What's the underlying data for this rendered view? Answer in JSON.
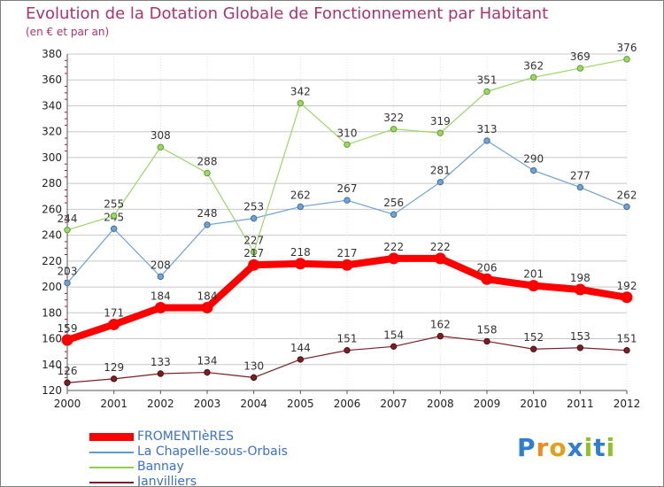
{
  "title": "Evolution de la Dotation Globale de Fonctionnement par Habitant",
  "subtitle": "(en € et par an)",
  "logo": {
    "text": "Proxiti",
    "letters": [
      "P",
      "r",
      "o",
      "x",
      "i",
      "t",
      "i"
    ],
    "colors": [
      "#2e7fd3",
      "#f08a1c",
      "#e2a11a",
      "#2e7fd3",
      "#8fc31f",
      "#2e7fd3",
      "#8fc31f"
    ]
  },
  "chart_data": {
    "type": "line",
    "title": "Evolution de la Dotation Globale de Fonctionnement par Habitant",
    "subtitle": "(en € et par an)",
    "xlabel": "",
    "ylabel": "",
    "ylim": [
      120,
      380
    ],
    "yticks": [
      120,
      140,
      160,
      180,
      200,
      220,
      240,
      260,
      280,
      300,
      320,
      340,
      360,
      380
    ],
    "grid": true,
    "legend_position": "bottom-left",
    "categories": [
      "2000",
      "2001",
      "2002",
      "2003",
      "2004",
      "2005",
      "2006",
      "2007",
      "2008",
      "2009",
      "2010",
      "2011",
      "2012"
    ],
    "series": [
      {
        "name": "FROMENTIèRES",
        "color": "#ff0000",
        "values": [
          159,
          171,
          184,
          184,
          217,
          218,
          217,
          222,
          222,
          206,
          201,
          198,
          192
        ]
      },
      {
        "name": "La Chapelle-sous-Orbais",
        "color": "#5b9bd5",
        "values": [
          203,
          245,
          208,
          248,
          253,
          262,
          267,
          256,
          281,
          313,
          290,
          277,
          262
        ]
      },
      {
        "name": "Bannay",
        "color": "#92d050",
        "values": [
          244,
          255,
          308,
          288,
          227,
          342,
          310,
          322,
          319,
          351,
          362,
          369,
          376
        ]
      },
      {
        "name": "Janvilliers",
        "color": "#7b1f24",
        "values": [
          126,
          129,
          133,
          134,
          130,
          144,
          151,
          154,
          162,
          158,
          152,
          153,
          151
        ]
      }
    ]
  }
}
